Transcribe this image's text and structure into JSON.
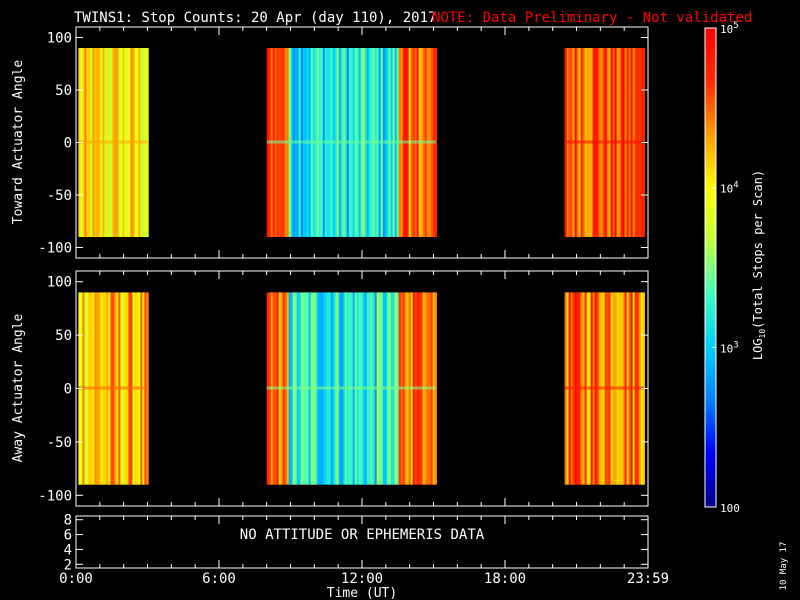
{
  "header": {
    "title": "TWINS1: Stop Counts: 20 Apr (day 110), 2017",
    "note": "NOTE: Data Preliminary - Not validated"
  },
  "colors": {
    "background": "#000000",
    "foreground": "#ffffff",
    "note": "#ff0000",
    "colorscale": [
      "#00008a",
      "#0000ff",
      "#0080ff",
      "#00d0ff",
      "#40ffc0",
      "#c0ff40",
      "#ffff00",
      "#ffa000",
      "#ff3000",
      "#ff0000"
    ]
  },
  "panels": {
    "toward": {
      "ylabel": "Toward Actuator Angle"
    },
    "away": {
      "ylabel": "Away Actuator Angle"
    },
    "ephem": {
      "message": "NO ATTITUDE OR EPHEMERIS DATA"
    }
  },
  "xaxis": {
    "label": "Time (UT)"
  },
  "colorbar": {
    "label": "LOG10(Total Stops per Scan)",
    "label_prefix": "LOG",
    "label_sub": "10",
    "label_suffix": "(Total Stops per Scan)",
    "tick_labels": [
      {
        "base": "10",
        "exp": "5",
        "value": 100000
      },
      {
        "base": "10",
        "exp": "4",
        "value": 10000
      },
      {
        "base": "10",
        "exp": "3",
        "value": 1000
      },
      {
        "base": "100",
        "exp": "",
        "value": 100
      }
    ]
  },
  "footer": {
    "date_stamp": "10 May 17"
  },
  "chart_data": [
    {
      "type": "heatmap",
      "title": "TWINS1: Stop Counts: 20 Apr (day 110), 2017",
      "xlabel": "Time (UT)",
      "ylabel": "Toward Actuator Angle",
      "xlim": [
        0,
        24
      ],
      "ylim": [
        -110,
        110
      ],
      "xticks": [
        "0:00",
        "6:00",
        "12:00",
        "18:00",
        "23:59"
      ],
      "xtick_values": [
        0,
        6,
        12,
        18,
        24
      ],
      "yticks": [
        100,
        50,
        0,
        -50,
        -100
      ],
      "y_range_data": [
        -90,
        90
      ],
      "zscale": "log",
      "zlim": [
        100,
        100000
      ],
      "data_blocks": [
        {
          "t_start": 0.1,
          "t_end": 3.0,
          "log10_level": 4.0
        },
        {
          "t_start": 8.0,
          "t_end": 15.1,
          "log10_level": 3.15
        },
        {
          "t_start": 20.5,
          "t_end": 23.85,
          "log10_level": 4.6
        }
      ]
    },
    {
      "type": "heatmap",
      "xlabel": "Time (UT)",
      "ylabel": "Away Actuator Angle",
      "xlim": [
        0,
        24
      ],
      "ylim": [
        -110,
        110
      ],
      "xticks": [
        "0:00",
        "6:00",
        "12:00",
        "18:00",
        "23:59"
      ],
      "xtick_values": [
        0,
        6,
        12,
        18,
        24
      ],
      "yticks": [
        100,
        50,
        0,
        -50,
        -100
      ],
      "y_range_data": [
        -90,
        90
      ],
      "zscale": "log",
      "zlim": [
        100,
        100000
      ],
      "data_blocks": [
        {
          "t_start": 0.1,
          "t_end": 3.0,
          "log10_level": 4.2
        },
        {
          "t_start": 8.0,
          "t_end": 15.1,
          "log10_level": 3.2
        },
        {
          "t_start": 20.5,
          "t_end": 23.85,
          "log10_level": 4.5
        }
      ]
    },
    {
      "type": "line",
      "xlabel": "Time (UT)",
      "xlim": [
        0,
        24
      ],
      "ylim": [
        1.5,
        8.5
      ],
      "xticks": [
        "0:00",
        "6:00",
        "12:00",
        "18:00",
        "23:59"
      ],
      "xtick_values": [
        0,
        6,
        12,
        18,
        24
      ],
      "yticks": [
        8,
        6,
        4,
        2
      ],
      "series": []
    }
  ]
}
